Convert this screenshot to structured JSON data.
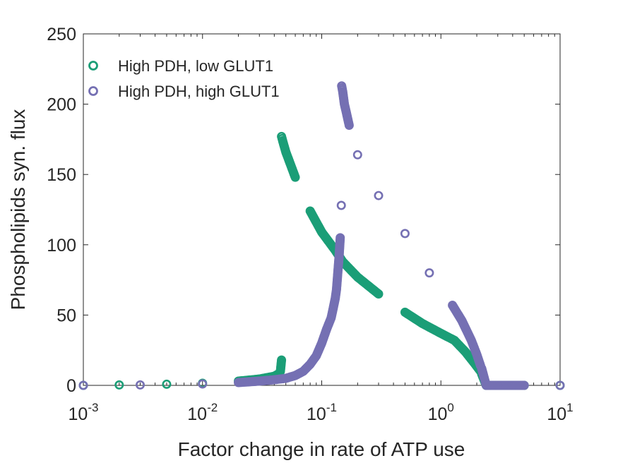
{
  "chart_data": {
    "type": "scatter",
    "title": "",
    "xlabel": "Factor change in rate of ATP use",
    "ylabel": "Phospholipids syn. flux",
    "xscale": "log",
    "xlim": [
      0.001,
      10
    ],
    "ylim": [
      0,
      250
    ],
    "grid": false,
    "legend_position": "top-left",
    "y_ticks": [
      0,
      50,
      100,
      150,
      200,
      250
    ],
    "x_ticks": [
      {
        "base": "10",
        "exp": "-3",
        "value": 0.001
      },
      {
        "base": "10",
        "exp": "-2",
        "value": 0.01
      },
      {
        "base": "10",
        "exp": "-1",
        "value": 0.1
      },
      {
        "base": "10",
        "exp": "0",
        "value": 1
      },
      {
        "base": "10",
        "exp": "1",
        "value": 10
      }
    ],
    "series": [
      {
        "name": "High PDH, low GLUT1",
        "color": "#1b9e77",
        "marker": "open-circle",
        "points": [
          [
            0.001,
            0
          ],
          [
            0.002,
            0.3
          ],
          [
            0.005,
            0.8
          ],
          [
            0.01,
            1.5
          ],
          [
            0.02,
            3.0
          ],
          [
            0.03,
            4.5
          ],
          [
            0.04,
            6.5
          ],
          [
            0.044,
            8.5
          ],
          [
            0.045,
            10
          ],
          [
            0.046,
            18
          ],
          [
            0.046,
            177
          ],
          [
            0.047,
            174
          ],
          [
            0.05,
            166
          ],
          [
            0.06,
            148
          ],
          [
            0.08,
            124
          ],
          [
            0.1,
            109
          ],
          [
            0.13,
            96
          ],
          [
            0.15,
            88
          ],
          [
            0.2,
            77
          ],
          [
            0.3,
            65
          ],
          [
            0.5,
            52
          ],
          [
            0.7,
            44
          ],
          [
            1.0,
            37
          ],
          [
            1.3,
            32
          ],
          [
            1.6,
            24
          ],
          [
            1.9,
            16
          ],
          [
            2.15,
            10
          ],
          [
            2.2,
            8
          ],
          [
            2.4,
            0
          ],
          [
            3.0,
            0
          ],
          [
            5.0,
            0
          ],
          [
            10.0,
            0
          ]
        ]
      },
      {
        "name": "High PDH, high GLUT1",
        "color": "#7570b3",
        "marker": "open-circle",
        "points": [
          [
            0.001,
            0
          ],
          [
            0.003,
            0.3
          ],
          [
            0.01,
            1
          ],
          [
            0.02,
            2
          ],
          [
            0.03,
            3
          ],
          [
            0.04,
            4
          ],
          [
            0.05,
            5
          ],
          [
            0.06,
            7
          ],
          [
            0.07,
            10
          ],
          [
            0.08,
            15
          ],
          [
            0.09,
            21
          ],
          [
            0.1,
            30
          ],
          [
            0.11,
            40
          ],
          [
            0.12,
            48
          ],
          [
            0.125,
            55
          ],
          [
            0.13,
            62
          ],
          [
            0.133,
            68
          ],
          [
            0.135,
            75
          ],
          [
            0.137,
            82
          ],
          [
            0.14,
            92
          ],
          [
            0.143,
            105
          ],
          [
            0.146,
            128
          ],
          [
            0.147,
            213
          ],
          [
            0.15,
            209
          ],
          [
            0.155,
            200
          ],
          [
            0.16,
            195
          ],
          [
            0.17,
            185
          ],
          [
            0.2,
            164
          ],
          [
            0.3,
            135
          ],
          [
            0.5,
            108
          ],
          [
            0.8,
            80
          ],
          [
            1.25,
            57
          ],
          [
            1.5,
            46
          ],
          [
            1.8,
            32
          ],
          [
            2.0,
            22
          ],
          [
            2.15,
            14
          ],
          [
            2.2,
            12
          ],
          [
            2.4,
            0
          ],
          [
            3.0,
            0
          ],
          [
            5.0,
            0
          ],
          [
            10.0,
            0
          ]
        ]
      }
    ]
  }
}
